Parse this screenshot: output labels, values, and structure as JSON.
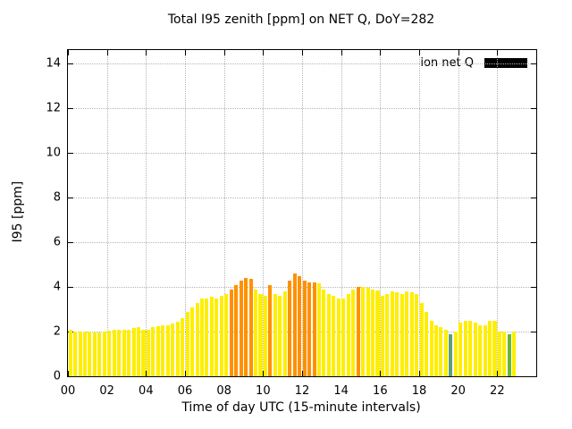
{
  "chart_data": {
    "type": "bar",
    "title": "Total I95 zenith [ppm] on NET Q, DoY=282",
    "xlabel": "Time of day UTC (15-minute intervals)",
    "ylabel": "I95 [ppm]",
    "legend": {
      "label": "ion net Q",
      "swatch_color": "#000000"
    },
    "xlim": [
      0,
      24
    ],
    "ylim": [
      0,
      14.6
    ],
    "x_tick_positions": [
      0,
      2,
      4,
      6,
      8,
      10,
      12,
      14,
      16,
      18,
      20,
      22
    ],
    "x_tick_labels": [
      "00",
      "02",
      "04",
      "06",
      "08",
      "10",
      "12",
      "14",
      "16",
      "18",
      "20",
      "22"
    ],
    "y_ticks": [
      0,
      2,
      4,
      6,
      8,
      10,
      12,
      14
    ],
    "grid": "dotted",
    "grid_color": "#b5b5b5",
    "bar_interval_hours": 0.25,
    "start_hour": 0,
    "palette": {
      "yellow": "#ffee00",
      "orange": "#ff9100",
      "teal": "#5e9e75",
      "green": "#6ab82e"
    },
    "values": [
      2.1,
      2.0,
      2.0,
      2.0,
      2.0,
      1.95,
      1.95,
      2.0,
      2.05,
      2.1,
      2.1,
      2.1,
      2.1,
      2.15,
      2.2,
      2.1,
      2.1,
      2.2,
      2.25,
      2.3,
      2.3,
      2.35,
      2.45,
      2.6,
      2.9,
      3.1,
      3.3,
      3.5,
      3.5,
      3.55,
      3.5,
      3.6,
      3.7,
      3.9,
      4.1,
      4.3,
      4.4,
      4.35,
      3.9,
      3.7,
      3.6,
      4.1,
      3.7,
      3.6,
      3.8,
      4.3,
      4.6,
      4.5,
      4.3,
      4.2,
      4.2,
      4.15,
      3.9,
      3.7,
      3.6,
      3.5,
      3.5,
      3.7,
      3.9,
      4.0,
      4.0,
      3.95,
      3.9,
      3.85,
      3.6,
      3.7,
      3.8,
      3.75,
      3.7,
      3.8,
      3.75,
      3.7,
      3.3,
      2.9,
      2.5,
      2.3,
      2.2,
      2.1,
      1.9,
      2.0,
      2.4,
      2.5,
      2.5,
      2.4,
      2.3,
      2.3,
      2.5,
      2.5,
      2.0,
      2.0,
      1.9,
      2.0
    ],
    "default_color": "yellow",
    "color_overrides": {
      "33": "orange",
      "34": "orange",
      "35": "orange",
      "36": "orange",
      "37": "orange",
      "41": "orange",
      "45": "orange",
      "46": "orange",
      "47": "orange",
      "48": "orange",
      "49": "orange",
      "50": "orange",
      "59": "orange",
      "78": "teal",
      "90": "green"
    }
  }
}
